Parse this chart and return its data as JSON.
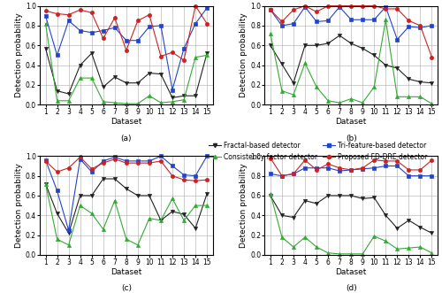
{
  "datasets": [
    1,
    2,
    3,
    4,
    5,
    6,
    7,
    8,
    9,
    10,
    11,
    12,
    13,
    14,
    15
  ],
  "subplot_labels": [
    "(a)",
    "(b)",
    "(c)",
    "(d)"
  ],
  "ylabel": "Detection probability",
  "xlabel": "Dataset",
  "ylim": [
    0.0,
    1.0
  ],
  "yticks": [
    0.0,
    0.2,
    0.4,
    0.6,
    0.8,
    1.0
  ],
  "series": [
    {
      "label": "Fractal-based detector",
      "color": "#222222",
      "marker": "v",
      "markersize": 3,
      "linewidth": 0.8
    },
    {
      "label": "Consistency factor detector",
      "color": "#33aa33",
      "marker": "^",
      "markersize": 3,
      "linewidth": 0.8
    },
    {
      "label": "Tri-feature-based detector",
      "color": "#2244cc",
      "marker": "s",
      "markersize": 3,
      "linewidth": 0.8
    },
    {
      "label": "Proposed FD-DRE detector",
      "color": "#cc2222",
      "marker": "o",
      "markersize": 3,
      "linewidth": 0.8
    }
  ],
  "data_a": [
    [
      0.57,
      0.14,
      0.11,
      0.4,
      0.52,
      0.18,
      0.28,
      0.22,
      0.22,
      0.32,
      0.31,
      0.07,
      0.09,
      0.09,
      0.52
    ],
    [
      0.82,
      0.04,
      0.04,
      0.27,
      0.27,
      0.03,
      0.02,
      0.01,
      0.01,
      0.09,
      0.02,
      0.03,
      0.05,
      0.48,
      0.5
    ],
    [
      0.9,
      0.5,
      0.85,
      0.75,
      0.73,
      0.75,
      0.78,
      0.65,
      0.65,
      0.79,
      0.8,
      0.15,
      0.57,
      0.82,
      0.98
    ],
    [
      0.95,
      0.92,
      0.91,
      0.96,
      0.93,
      0.67,
      0.88,
      0.55,
      0.85,
      0.91,
      0.49,
      0.53,
      0.45,
      1.0,
      0.82
    ]
  ],
  "data_b": [
    [
      0.6,
      0.41,
      0.22,
      0.6,
      0.6,
      0.62,
      0.7,
      0.62,
      0.57,
      0.5,
      0.4,
      0.37,
      0.26,
      0.23,
      0.22
    ],
    [
      0.72,
      0.14,
      0.1,
      0.42,
      0.18,
      0.04,
      0.02,
      0.06,
      0.02,
      0.18,
      0.86,
      0.08,
      0.08,
      0.08,
      0.01
    ],
    [
      0.96,
      0.8,
      0.82,
      0.99,
      0.84,
      0.85,
      0.99,
      0.86,
      0.86,
      0.86,
      0.99,
      0.66,
      0.79,
      0.78,
      0.8
    ],
    [
      0.96,
      0.84,
      0.96,
      1.0,
      0.94,
      1.0,
      1.0,
      1.0,
      1.0,
      1.0,
      0.97,
      0.97,
      0.85,
      0.8,
      0.48
    ]
  ],
  "data_c": [
    [
      0.72,
      0.42,
      0.22,
      0.6,
      0.6,
      0.77,
      0.77,
      0.67,
      0.6,
      0.6,
      0.35,
      0.44,
      0.41,
      0.27,
      0.62
    ],
    [
      0.72,
      0.16,
      0.1,
      0.5,
      0.42,
      0.26,
      0.55,
      0.16,
      0.1,
      0.37,
      0.35,
      0.57,
      0.35,
      0.5,
      0.5
    ],
    [
      0.96,
      0.65,
      0.25,
      0.97,
      0.84,
      0.95,
      0.99,
      0.95,
      0.95,
      0.95,
      1.0,
      0.9,
      0.81,
      0.8,
      1.0
    ],
    [
      0.95,
      0.84,
      0.88,
      0.99,
      0.87,
      0.93,
      0.97,
      0.93,
      0.93,
      0.93,
      0.95,
      0.8,
      0.76,
      0.75,
      0.76
    ]
  ],
  "data_d": [
    [
      0.6,
      0.4,
      0.38,
      0.55,
      0.52,
      0.6,
      0.6,
      0.6,
      0.57,
      0.58,
      0.4,
      0.27,
      0.35,
      0.28,
      0.22
    ],
    [
      0.62,
      0.18,
      0.08,
      0.18,
      0.08,
      0.02,
      0.01,
      0.01,
      0.01,
      0.19,
      0.14,
      0.06,
      0.07,
      0.08,
      0.02
    ],
    [
      0.82,
      0.8,
      0.82,
      0.88,
      0.88,
      0.88,
      0.85,
      0.86,
      0.87,
      0.88,
      0.9,
      0.9,
      0.8,
      0.8,
      0.8
    ],
    [
      0.98,
      0.8,
      0.82,
      0.96,
      0.86,
      0.92,
      0.88,
      0.86,
      0.88,
      0.96,
      0.95,
      0.95,
      0.86,
      0.86,
      0.96
    ]
  ],
  "grid_color": "#aaaaaa",
  "grid_linewidth": 0.4,
  "background_color": "#ffffff",
  "tick_fontsize": 5.5,
  "label_fontsize": 6.5,
  "legend_fontsize": 5.5
}
